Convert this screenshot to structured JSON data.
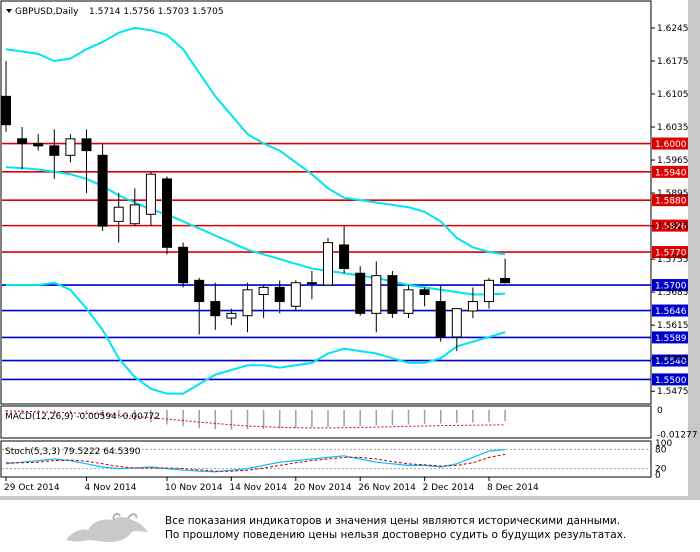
{
  "header": {
    "symbol": "GBPUSD,Daily",
    "ohlc": "1.5714 1.5756 1.5703 1.5705"
  },
  "price_axis": {
    "ticks": [
      "1.6245",
      "1.6175",
      "1.6105",
      "1.6035",
      "1.5965",
      "1.5895",
      "1.5825",
      "1.5755",
      "1.5685",
      "1.5615",
      "1.5545",
      "1.5475"
    ]
  },
  "levels": [
    {
      "label": "1.6000",
      "value": 1.6,
      "color": "#dd0000"
    },
    {
      "label": "1.5940",
      "value": 1.594,
      "color": "#dd0000"
    },
    {
      "label": "1.5880",
      "value": 1.588,
      "color": "#dd0000"
    },
    {
      "label": "1.5826",
      "value": 1.5826,
      "color": "#dd0000"
    },
    {
      "label": "1.5770",
      "value": 1.577,
      "color": "#dd0000"
    },
    {
      "label": "1.5700",
      "value": 1.57,
      "color": "#0000cc"
    },
    {
      "label": "1.5646",
      "value": 1.5646,
      "color": "#0000cc"
    },
    {
      "label": "1.5589",
      "value": 1.5589,
      "color": "#0000cc"
    },
    {
      "label": "1.5540",
      "value": 1.554,
      "color": "#0000cc"
    },
    {
      "label": "1.5500",
      "value": 1.55,
      "color": "#0000cc"
    }
  ],
  "macd": {
    "label": "MACD(12,26,9) -0.00594 -0.00772",
    "ticks": [
      "0",
      "-0.01277"
    ]
  },
  "stoch": {
    "label": "Stoch(5,3,3) 79.5222 64.5390",
    "ticks": [
      "100",
      "80",
      "20",
      "0"
    ]
  },
  "date_axis": [
    "29 Oct 2014",
    "4 Nov 2014",
    "10 Nov 2014",
    "14 Nov 2014",
    "20 Nov 2014",
    "26 Nov 2014",
    "2 Dec 2014",
    "8 Dec 2014"
  ],
  "colors": {
    "bull_body": "#ffffff",
    "bear_body": "#000000",
    "band": "#00e5ee",
    "resistance": "#dd0000",
    "support": "#0000cc"
  },
  "chart_data": {
    "type": "candlestick",
    "candles": [
      {
        "o": 1.61,
        "h": 1.6175,
        "l": 1.6025,
        "c": 1.604
      },
      {
        "o": 1.601,
        "h": 1.6035,
        "l": 1.5945,
        "c": 1.6
      },
      {
        "o": 1.6,
        "h": 1.602,
        "l": 1.5985,
        "c": 1.5995
      },
      {
        "o": 1.5995,
        "h": 1.603,
        "l": 1.5925,
        "c": 1.5975
      },
      {
        "o": 1.5975,
        "h": 1.602,
        "l": 1.596,
        "c": 1.601
      },
      {
        "o": 1.601,
        "h": 1.603,
        "l": 1.5895,
        "c": 1.5985
      },
      {
        "o": 1.5975,
        "h": 1.6,
        "l": 1.5815,
        "c": 1.5825
      },
      {
        "o": 1.5835,
        "h": 1.5895,
        "l": 1.579,
        "c": 1.5865
      },
      {
        "o": 1.583,
        "h": 1.5905,
        "l": 1.5825,
        "c": 1.587
      },
      {
        "o": 1.585,
        "h": 1.594,
        "l": 1.5825,
        "c": 1.5935
      },
      {
        "o": 1.5925,
        "h": 1.593,
        "l": 1.5765,
        "c": 1.578
      },
      {
        "o": 1.578,
        "h": 1.579,
        "l": 1.5695,
        "c": 1.5705
      },
      {
        "o": 1.571,
        "h": 1.5715,
        "l": 1.5595,
        "c": 1.5665
      },
      {
        "o": 1.5665,
        "h": 1.5705,
        "l": 1.5605,
        "c": 1.5635
      },
      {
        "o": 1.563,
        "h": 1.565,
        "l": 1.5615,
        "c": 1.564
      },
      {
        "o": 1.5635,
        "h": 1.5705,
        "l": 1.56,
        "c": 1.569
      },
      {
        "o": 1.568,
        "h": 1.57,
        "l": 1.563,
        "c": 1.5695
      },
      {
        "o": 1.5695,
        "h": 1.571,
        "l": 1.564,
        "c": 1.5665
      },
      {
        "o": 1.5655,
        "h": 1.571,
        "l": 1.5645,
        "c": 1.5705
      },
      {
        "o": 1.5705,
        "h": 1.573,
        "l": 1.567,
        "c": 1.5705
      },
      {
        "o": 1.57,
        "h": 1.58,
        "l": 1.57,
        "c": 1.579
      },
      {
        "o": 1.5785,
        "h": 1.5825,
        "l": 1.5725,
        "c": 1.5735
      },
      {
        "o": 1.5725,
        "h": 1.574,
        "l": 1.5635,
        "c": 1.564
      },
      {
        "o": 1.564,
        "h": 1.575,
        "l": 1.56,
        "c": 1.572
      },
      {
        "o": 1.572,
        "h": 1.573,
        "l": 1.563,
        "c": 1.564
      },
      {
        "o": 1.564,
        "h": 1.57,
        "l": 1.563,
        "c": 1.569
      },
      {
        "o": 1.569,
        "h": 1.5695,
        "l": 1.5655,
        "c": 1.568
      },
      {
        "o": 1.5665,
        "h": 1.57,
        "l": 1.558,
        "c": 1.559
      },
      {
        "o": 1.559,
        "h": 1.565,
        "l": 1.556,
        "c": 1.565
      },
      {
        "o": 1.5645,
        "h": 1.5695,
        "l": 1.563,
        "c": 1.5665
      },
      {
        "o": 1.5665,
        "h": 1.5715,
        "l": 1.565,
        "c": 1.571
      },
      {
        "o": 1.5714,
        "h": 1.5756,
        "l": 1.5703,
        "c": 1.5705
      }
    ],
    "bollinger_upper": [
      1.62,
      1.6195,
      1.619,
      1.6175,
      1.618,
      1.62,
      1.6215,
      1.6235,
      1.6245,
      1.624,
      1.623,
      1.62,
      1.615,
      1.61,
      1.606,
      1.602,
      1.6,
      1.5985,
      1.596,
      1.5935,
      1.5905,
      1.5885,
      1.588,
      1.5875,
      1.587,
      1.5865,
      1.5855,
      1.5835,
      1.58,
      1.578,
      1.577,
      1.5765
    ],
    "bollinger_mid": [
      1.595,
      1.5948,
      1.5945,
      1.594,
      1.5935,
      1.5925,
      1.591,
      1.589,
      1.5875,
      1.586,
      1.585,
      1.5835,
      1.582,
      1.5805,
      1.579,
      1.5775,
      1.5765,
      1.5755,
      1.5745,
      1.5735,
      1.573,
      1.5725,
      1.572,
      1.5715,
      1.5708,
      1.57,
      1.5695,
      1.569,
      1.5685,
      1.568,
      1.568,
      1.5682
    ],
    "bollinger_lower": [
      1.57,
      1.57,
      1.57,
      1.5705,
      1.569,
      1.565,
      1.5605,
      1.5545,
      1.5505,
      1.548,
      1.547,
      1.547,
      1.549,
      1.551,
      1.552,
      1.553,
      1.553,
      1.5525,
      1.553,
      1.5535,
      1.5555,
      1.5565,
      1.556,
      1.5555,
      1.5545,
      1.5535,
      1.5535,
      1.5545,
      1.557,
      1.558,
      1.559,
      1.56
    ],
    "macd_histogram": [
      -0.001,
      -0.0012,
      -0.0015,
      -0.0018,
      -0.002,
      -0.0025,
      -0.0035,
      -0.0045,
      -0.0055,
      -0.0065,
      -0.0075,
      -0.0085,
      -0.0095,
      -0.01,
      -0.0102,
      -0.01,
      -0.0098,
      -0.0095,
      -0.0092,
      -0.009,
      -0.0088,
      -0.0085,
      -0.0083,
      -0.008,
      -0.0078,
      -0.0075,
      -0.0072,
      -0.007,
      -0.0068,
      -0.0065,
      -0.0062,
      -0.0059
    ],
    "macd_signal": [
      -0.0005,
      -0.0007,
      -0.0009,
      -0.0012,
      -0.0015,
      -0.0018,
      -0.0022,
      -0.0027,
      -0.0033,
      -0.004,
      -0.0047,
      -0.0055,
      -0.0063,
      -0.007,
      -0.0077,
      -0.0083,
      -0.0087,
      -0.009,
      -0.0092,
      -0.0093,
      -0.0093,
      -0.0092,
      -0.0091,
      -0.0089,
      -0.0087,
      -0.0085,
      -0.0083,
      -0.0081,
      -0.008,
      -0.0079,
      -0.0078,
      -0.0077
    ],
    "stoch_k": [
      35,
      40,
      45,
      50,
      45,
      35,
      25,
      20,
      22,
      25,
      20,
      15,
      12,
      10,
      15,
      20,
      30,
      40,
      45,
      50,
      55,
      60,
      50,
      40,
      35,
      30,
      30,
      25,
      35,
      55,
      75,
      79.5
    ],
    "stoch_d": [
      38,
      38,
      40,
      45,
      47,
      43,
      35,
      27,
      22,
      22,
      22,
      20,
      16,
      12,
      12,
      15,
      22,
      30,
      38,
      45,
      50,
      55,
      55,
      50,
      42,
      35,
      32,
      28,
      30,
      38,
      55,
      64.5
    ],
    "ylim": [
      1.545,
      1.63
    ]
  }
}
